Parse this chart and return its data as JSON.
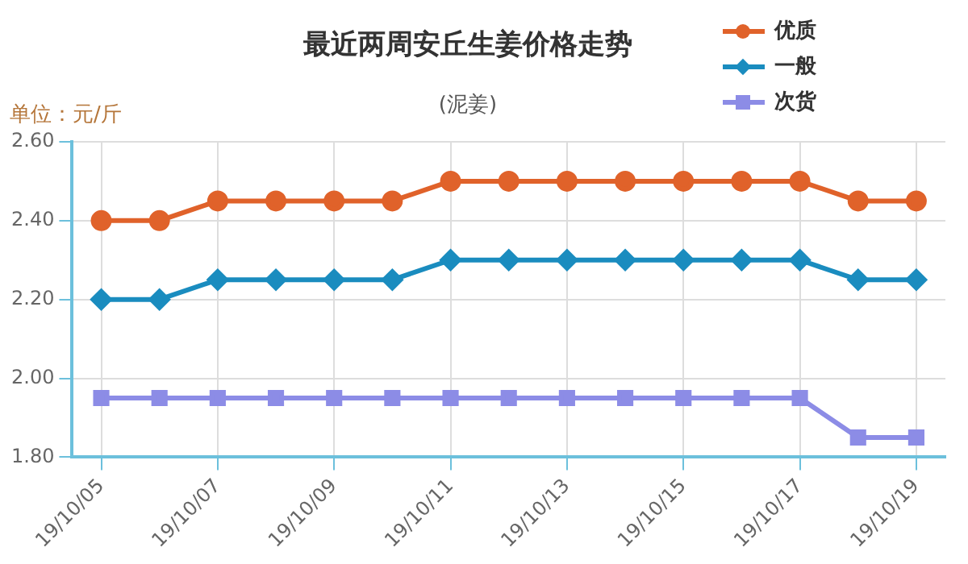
{
  "chart_data": {
    "type": "line",
    "title": "最近两周安丘生姜价格走势",
    "subtitle": "(泥姜)",
    "ylabel": "单位：元/斤",
    "categories": [
      "19/10/05",
      null,
      "19/10/07",
      null,
      "19/10/09",
      null,
      "19/10/11",
      null,
      "19/10/13",
      null,
      "19/10/15",
      null,
      "19/10/17",
      null,
      "19/10/19"
    ],
    "series": [
      {
        "name": "优质",
        "color": "#e0622a",
        "marker": "circle",
        "values": [
          2.4,
          2.4,
          2.45,
          2.45,
          2.45,
          2.45,
          2.5,
          2.5,
          2.5,
          2.5,
          2.5,
          2.5,
          2.5,
          2.45,
          2.45
        ]
      },
      {
        "name": "一般",
        "color": "#1a8cbf",
        "marker": "diamond",
        "values": [
          2.2,
          2.2,
          2.25,
          2.25,
          2.25,
          2.25,
          2.3,
          2.3,
          2.3,
          2.3,
          2.3,
          2.3,
          2.3,
          2.25,
          2.25
        ]
      },
      {
        "name": "次货",
        "color": "#8c8ce6",
        "marker": "square",
        "values": [
          1.95,
          1.95,
          1.95,
          1.95,
          1.95,
          1.95,
          1.95,
          1.95,
          1.95,
          1.95,
          1.95,
          1.95,
          1.95,
          1.85,
          1.85
        ]
      }
    ],
    "ylim": [
      1.8,
      2.6
    ],
    "yticks": [
      {
        "value": 1.8,
        "label": "1.80"
      },
      {
        "value": 2.0,
        "label": "2.00"
      },
      {
        "value": 2.2,
        "label": "2.20"
      },
      {
        "value": 2.4,
        "label": "2.40"
      },
      {
        "value": 2.6,
        "label": "2.60"
      }
    ],
    "grid": true,
    "legend": "top right",
    "line_style": "solid"
  }
}
